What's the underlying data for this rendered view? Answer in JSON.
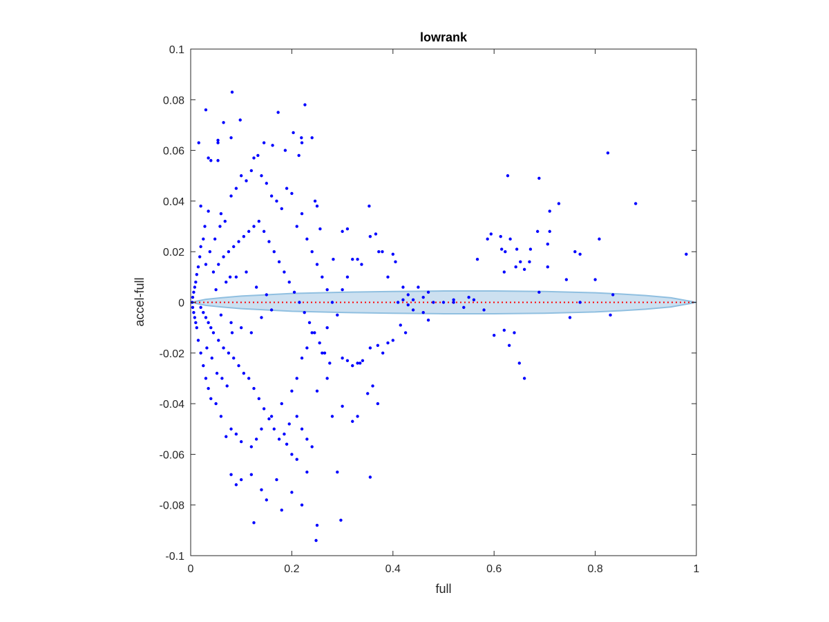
{
  "chart_data": {
    "type": "scatter",
    "title": "lowrank",
    "xlabel": "full",
    "ylabel": "accel-full",
    "xlim": [
      0,
      1
    ],
    "ylim": [
      -0.1,
      0.1
    ],
    "xticks": [
      0,
      0.2,
      0.4,
      0.6,
      0.8,
      1
    ],
    "xtick_labels": [
      "0",
      "0.2",
      "0.4",
      "0.6",
      "0.8",
      "1"
    ],
    "yticks": [
      -0.1,
      -0.08,
      -0.06,
      -0.04,
      -0.02,
      0,
      0.02,
      0.04,
      0.06,
      0.08,
      0.1
    ],
    "ytick_labels": [
      "-0.1",
      "-0.08",
      "-0.06",
      "-0.04",
      "-0.02",
      "0",
      "0.02",
      "0.04",
      "0.06",
      "0.08",
      "0.1"
    ],
    "grid": false,
    "colors": {
      "points": "#0000ff",
      "band_fill": "#cce0f0",
      "band_edge": "#8fbfe0",
      "reference_line": "#ff0000",
      "axes": "#262626"
    },
    "band": {
      "description": "tolerance band around zero",
      "x": [
        0,
        0.03,
        0.06,
        0.1,
        0.15,
        0.2,
        0.3,
        0.4,
        0.5,
        0.6,
        0.7,
        0.8,
        0.85,
        0.9,
        0.95,
        1.0
      ],
      "half_width": [
        0,
        0.0012,
        0.0018,
        0.0025,
        0.003,
        0.0035,
        0.004,
        0.0043,
        0.0045,
        0.0045,
        0.0043,
        0.0038,
        0.0033,
        0.0027,
        0.0018,
        0
      ]
    },
    "reference_line": {
      "y": 0,
      "style": "dotted"
    },
    "series": [
      {
        "marker": "dot",
        "points": [
          [
            0.082,
            0.083
          ],
          [
            0.03,
            0.076
          ],
          [
            0.173,
            0.075
          ],
          [
            0.226,
            0.078
          ],
          [
            0.065,
            0.071
          ],
          [
            0.098,
            0.072
          ],
          [
            0.016,
            0.063
          ],
          [
            0.054,
            0.063
          ],
          [
            0.054,
            0.064
          ],
          [
            0.08,
            0.065
          ],
          [
            0.145,
            0.063
          ],
          [
            0.203,
            0.067
          ],
          [
            0.219,
            0.065
          ],
          [
            0.24,
            0.065
          ],
          [
            0.162,
            0.062
          ],
          [
            0.035,
            0.057
          ],
          [
            0.04,
            0.056
          ],
          [
            0.054,
            0.056
          ],
          [
            0.125,
            0.057
          ],
          [
            0.133,
            0.058
          ],
          [
            0.187,
            0.06
          ],
          [
            0.214,
            0.058
          ],
          [
            0.22,
            0.063
          ],
          [
            0.627,
            0.05
          ],
          [
            0.689,
            0.049
          ],
          [
            0.825,
            0.059
          ],
          [
            0.88,
            0.039
          ],
          [
            0.98,
            0.019
          ],
          [
            0.728,
            0.039
          ],
          [
            0.71,
            0.036
          ],
          [
            0.808,
            0.025
          ],
          [
            0.71,
            0.028
          ],
          [
            0.686,
            0.028
          ],
          [
            0.706,
            0.023
          ],
          [
            0.594,
            0.027
          ],
          [
            0.587,
            0.025
          ],
          [
            0.613,
            0.026
          ],
          [
            0.632,
            0.025
          ],
          [
            0.615,
            0.021
          ],
          [
            0.622,
            0.02
          ],
          [
            0.645,
            0.021
          ],
          [
            0.672,
            0.021
          ],
          [
            0.76,
            0.02
          ],
          [
            0.77,
            0.019
          ],
          [
            0.652,
            0.016
          ],
          [
            0.67,
            0.016
          ],
          [
            0.567,
            0.017
          ],
          [
            0.62,
            0.012
          ],
          [
            0.66,
            0.013
          ],
          [
            0.643,
            0.014
          ],
          [
            0.706,
            0.014
          ],
          [
            0.743,
            0.009
          ],
          [
            0.689,
            0.004
          ],
          [
            0.353,
            0.038
          ],
          [
            0.366,
            0.027
          ],
          [
            0.355,
            0.026
          ],
          [
            0.372,
            0.02
          ],
          [
            0.379,
            0.02
          ],
          [
            0.4,
            0.019
          ],
          [
            0.405,
            0.016
          ],
          [
            0.31,
            0.029
          ],
          [
            0.3,
            0.028
          ],
          [
            0.256,
            0.029
          ],
          [
            0.246,
            0.04
          ],
          [
            0.25,
            0.038
          ],
          [
            0.282,
            0.017
          ],
          [
            0.32,
            0.017
          ],
          [
            0.33,
            0.017
          ],
          [
            0.338,
            0.015
          ],
          [
            0.39,
            0.01
          ],
          [
            0.42,
            0.006
          ],
          [
            0.45,
            0.006
          ],
          [
            0.47,
            0.004
          ],
          [
            0.5,
            0.0
          ],
          [
            0.52,
            0.0
          ],
          [
            0.48,
            0.0
          ],
          [
            0.55,
            0.002
          ],
          [
            0.56,
            0.001
          ],
          [
            0.41,
            0.0
          ],
          [
            0.43,
            -0.001
          ],
          [
            0.44,
            -0.003
          ],
          [
            0.46,
            -0.004
          ],
          [
            0.47,
            -0.007
          ],
          [
            0.415,
            -0.009
          ],
          [
            0.425,
            -0.012
          ],
          [
            0.4,
            -0.015
          ],
          [
            0.39,
            -0.016
          ],
          [
            0.38,
            -0.02
          ],
          [
            0.37,
            -0.017
          ],
          [
            0.355,
            -0.018
          ],
          [
            0.34,
            -0.023
          ],
          [
            0.335,
            -0.024
          ],
          [
            0.32,
            -0.025
          ],
          [
            0.33,
            -0.024
          ],
          [
            0.31,
            -0.023
          ],
          [
            0.3,
            -0.022
          ],
          [
            0.36,
            -0.033
          ],
          [
            0.35,
            -0.036
          ],
          [
            0.37,
            -0.04
          ],
          [
            0.355,
            -0.069
          ],
          [
            0.297,
            -0.086
          ],
          [
            0.29,
            -0.067
          ],
          [
            0.33,
            -0.045
          ],
          [
            0.32,
            -0.047
          ],
          [
            0.3,
            -0.041
          ],
          [
            0.28,
            -0.045
          ],
          [
            0.25,
            -0.035
          ],
          [
            0.27,
            -0.03
          ],
          [
            0.26,
            -0.02
          ],
          [
            0.27,
            -0.01
          ],
          [
            0.24,
            -0.012
          ],
          [
            0.23,
            -0.018
          ],
          [
            0.22,
            -0.022
          ],
          [
            0.21,
            -0.03
          ],
          [
            0.2,
            -0.035
          ],
          [
            0.18,
            -0.04
          ],
          [
            0.16,
            -0.045
          ],
          [
            0.14,
            -0.05
          ],
          [
            0.13,
            -0.054
          ],
          [
            0.12,
            -0.057
          ],
          [
            0.1,
            -0.055
          ],
          [
            0.09,
            -0.052
          ],
          [
            0.08,
            -0.05
          ],
          [
            0.07,
            -0.053
          ],
          [
            0.06,
            -0.045
          ],
          [
            0.05,
            -0.04
          ],
          [
            0.04,
            -0.038
          ],
          [
            0.035,
            -0.034
          ],
          [
            0.03,
            -0.03
          ],
          [
            0.025,
            -0.025
          ],
          [
            0.02,
            -0.02
          ],
          [
            0.015,
            -0.015
          ],
          [
            0.012,
            -0.01
          ],
          [
            0.01,
            -0.008
          ],
          [
            0.008,
            -0.006
          ],
          [
            0.006,
            -0.004
          ],
          [
            0.004,
            -0.002
          ],
          [
            0.003,
            0.0
          ],
          [
            0.004,
            0.002
          ],
          [
            0.006,
            0.004
          ],
          [
            0.008,
            0.006
          ],
          [
            0.01,
            0.008
          ],
          [
            0.012,
            0.011
          ],
          [
            0.015,
            0.014
          ],
          [
            0.018,
            0.018
          ],
          [
            0.02,
            0.022
          ],
          [
            0.025,
            0.025
          ],
          [
            0.028,
            0.03
          ],
          [
            0.02,
            0.038
          ],
          [
            0.035,
            0.036
          ],
          [
            0.06,
            0.035
          ],
          [
            0.08,
            0.042
          ],
          [
            0.09,
            0.045
          ],
          [
            0.1,
            0.05
          ],
          [
            0.11,
            0.048
          ],
          [
            0.12,
            0.052
          ],
          [
            0.14,
            0.05
          ],
          [
            0.15,
            0.047
          ],
          [
            0.16,
            0.042
          ],
          [
            0.17,
            0.04
          ],
          [
            0.18,
            0.037
          ],
          [
            0.19,
            0.045
          ],
          [
            0.2,
            0.043
          ],
          [
            0.21,
            0.03
          ],
          [
            0.22,
            0.035
          ],
          [
            0.23,
            0.025
          ],
          [
            0.24,
            0.02
          ],
          [
            0.25,
            0.015
          ],
          [
            0.26,
            0.01
          ],
          [
            0.27,
            0.005
          ],
          [
            0.28,
            0.0
          ],
          [
            0.29,
            -0.005
          ],
          [
            0.3,
            0.005
          ],
          [
            0.31,
            0.01
          ],
          [
            0.22,
            -0.08
          ],
          [
            0.2,
            -0.075
          ],
          [
            0.18,
            -0.082
          ],
          [
            0.17,
            -0.07
          ],
          [
            0.15,
            -0.078
          ],
          [
            0.14,
            -0.074
          ],
          [
            0.12,
            -0.068
          ],
          [
            0.125,
            -0.087
          ],
          [
            0.1,
            -0.07
          ],
          [
            0.08,
            -0.068
          ],
          [
            0.09,
            -0.072
          ],
          [
            0.25,
            -0.088
          ],
          [
            0.248,
            -0.094
          ],
          [
            0.23,
            -0.067
          ],
          [
            0.21,
            -0.062
          ],
          [
            0.2,
            -0.06
          ],
          [
            0.19,
            -0.056
          ],
          [
            0.24,
            -0.057
          ],
          [
            0.23,
            -0.054
          ],
          [
            0.22,
            -0.05
          ],
          [
            0.21,
            -0.045
          ],
          [
            0.195,
            -0.048
          ],
          [
            0.185,
            -0.052
          ],
          [
            0.175,
            -0.054
          ],
          [
            0.165,
            -0.05
          ],
          [
            0.155,
            -0.046
          ],
          [
            0.145,
            -0.042
          ],
          [
            0.135,
            -0.038
          ],
          [
            0.125,
            -0.034
          ],
          [
            0.115,
            -0.03
          ],
          [
            0.105,
            -0.028
          ],
          [
            0.095,
            -0.025
          ],
          [
            0.085,
            -0.022
          ],
          [
            0.075,
            -0.02
          ],
          [
            0.065,
            -0.018
          ],
          [
            0.055,
            -0.015
          ],
          [
            0.045,
            -0.012
          ],
          [
            0.04,
            -0.01
          ],
          [
            0.035,
            -0.008
          ],
          [
            0.03,
            -0.006
          ],
          [
            0.025,
            -0.004
          ],
          [
            0.02,
            -0.002
          ],
          [
            0.045,
            0.012
          ],
          [
            0.055,
            0.015
          ],
          [
            0.065,
            0.018
          ],
          [
            0.075,
            0.02
          ],
          [
            0.085,
            0.022
          ],
          [
            0.095,
            0.024
          ],
          [
            0.105,
            0.026
          ],
          [
            0.115,
            0.028
          ],
          [
            0.125,
            0.03
          ],
          [
            0.135,
            0.032
          ],
          [
            0.145,
            0.028
          ],
          [
            0.155,
            0.024
          ],
          [
            0.165,
            0.02
          ],
          [
            0.175,
            0.016
          ],
          [
            0.185,
            0.012
          ],
          [
            0.195,
            0.008
          ],
          [
            0.205,
            0.004
          ],
          [
            0.215,
            0.0
          ],
          [
            0.225,
            -0.004
          ],
          [
            0.235,
            -0.008
          ],
          [
            0.245,
            -0.012
          ],
          [
            0.255,
            -0.016
          ],
          [
            0.265,
            -0.02
          ],
          [
            0.275,
            -0.024
          ],
          [
            0.05,
            0.005
          ],
          [
            0.06,
            -0.005
          ],
          [
            0.07,
            0.008
          ],
          [
            0.08,
            -0.008
          ],
          [
            0.09,
            0.01
          ],
          [
            0.1,
            -0.01
          ],
          [
            0.11,
            0.012
          ],
          [
            0.12,
            -0.012
          ],
          [
            0.13,
            0.006
          ],
          [
            0.14,
            -0.006
          ],
          [
            0.15,
            0.003
          ],
          [
            0.16,
            -0.003
          ],
          [
            0.03,
            0.015
          ],
          [
            0.032,
            -0.018
          ],
          [
            0.038,
            0.02
          ],
          [
            0.042,
            -0.022
          ],
          [
            0.048,
            0.025
          ],
          [
            0.052,
            -0.028
          ],
          [
            0.058,
            0.03
          ],
          [
            0.062,
            -0.03
          ],
          [
            0.068,
            0.032
          ],
          [
            0.072,
            -0.033
          ],
          [
            0.078,
            0.01
          ],
          [
            0.082,
            -0.012
          ],
          [
            0.6,
            -0.013
          ],
          [
            0.62,
            -0.011
          ],
          [
            0.64,
            -0.012
          ],
          [
            0.66,
            -0.03
          ],
          [
            0.65,
            -0.024
          ],
          [
            0.63,
            -0.017
          ],
          [
            0.75,
            -0.006
          ],
          [
            0.83,
            -0.005
          ],
          [
            0.835,
            0.003
          ],
          [
            0.77,
            0.0
          ],
          [
            0.8,
            0.009
          ],
          [
            0.58,
            -0.003
          ],
          [
            0.52,
            0.001
          ],
          [
            0.54,
            -0.002
          ],
          [
            0.46,
            0.002
          ],
          [
            0.44,
            0.001
          ],
          [
            0.43,
            0.003
          ],
          [
            0.42,
            0.001
          ]
        ]
      }
    ]
  }
}
